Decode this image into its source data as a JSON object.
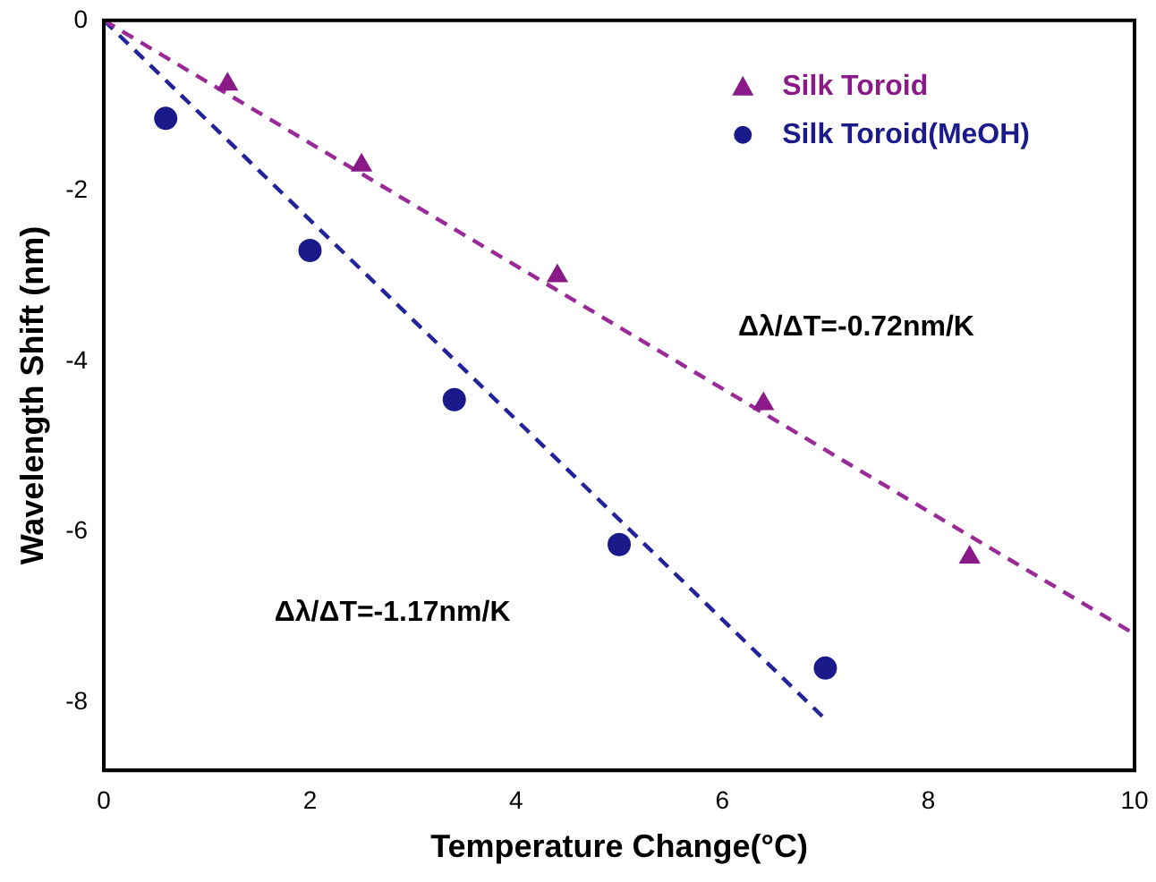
{
  "chart_data": {
    "type": "scatter",
    "xlabel": "Temperature Change(°C)",
    "ylabel": "Wavelength Shift (nm)",
    "xlim": [
      0,
      10
    ],
    "ylim": [
      -8.8,
      0
    ],
    "xticks": [
      0,
      2,
      4,
      6,
      8,
      10
    ],
    "yticks": [
      -8,
      -6,
      -4,
      -2,
      0
    ],
    "grid": false,
    "legend": "top right",
    "series": [
      {
        "name": "Silk Toroid",
        "type": "scatter",
        "marker": "triangle",
        "color": "#8b1a89",
        "x": [
          1.2,
          2.5,
          4.4,
          6.4,
          8.4
        ],
        "values": [
          -0.75,
          -1.7,
          -3.0,
          -4.5,
          -6.3
        ]
      },
      {
        "name": "Silk Toroid(MeOH)",
        "type": "scatter",
        "marker": "circle",
        "color": "#1a1a8b",
        "x": [
          0.6,
          2,
          3.4,
          5,
          7
        ],
        "values": [
          -1.15,
          -2.7,
          -4.45,
          -6.15,
          -7.6
        ]
      },
      {
        "type": "line",
        "line_style": "dashed",
        "marker": "none",
        "color": "#9b2a99",
        "x": [
          0,
          10
        ],
        "values": [
          0,
          -7.2
        ]
      },
      {
        "type": "line",
        "line_style": "dashed",
        "marker": "none",
        "color": "#22229b",
        "x": [
          0,
          7
        ],
        "values": [
          0,
          -8.2
        ]
      }
    ],
    "annotations": [
      "Δλ/ΔT=-0.72nm/K",
      "Δλ/ΔT=-1.17nm/K"
    ]
  }
}
